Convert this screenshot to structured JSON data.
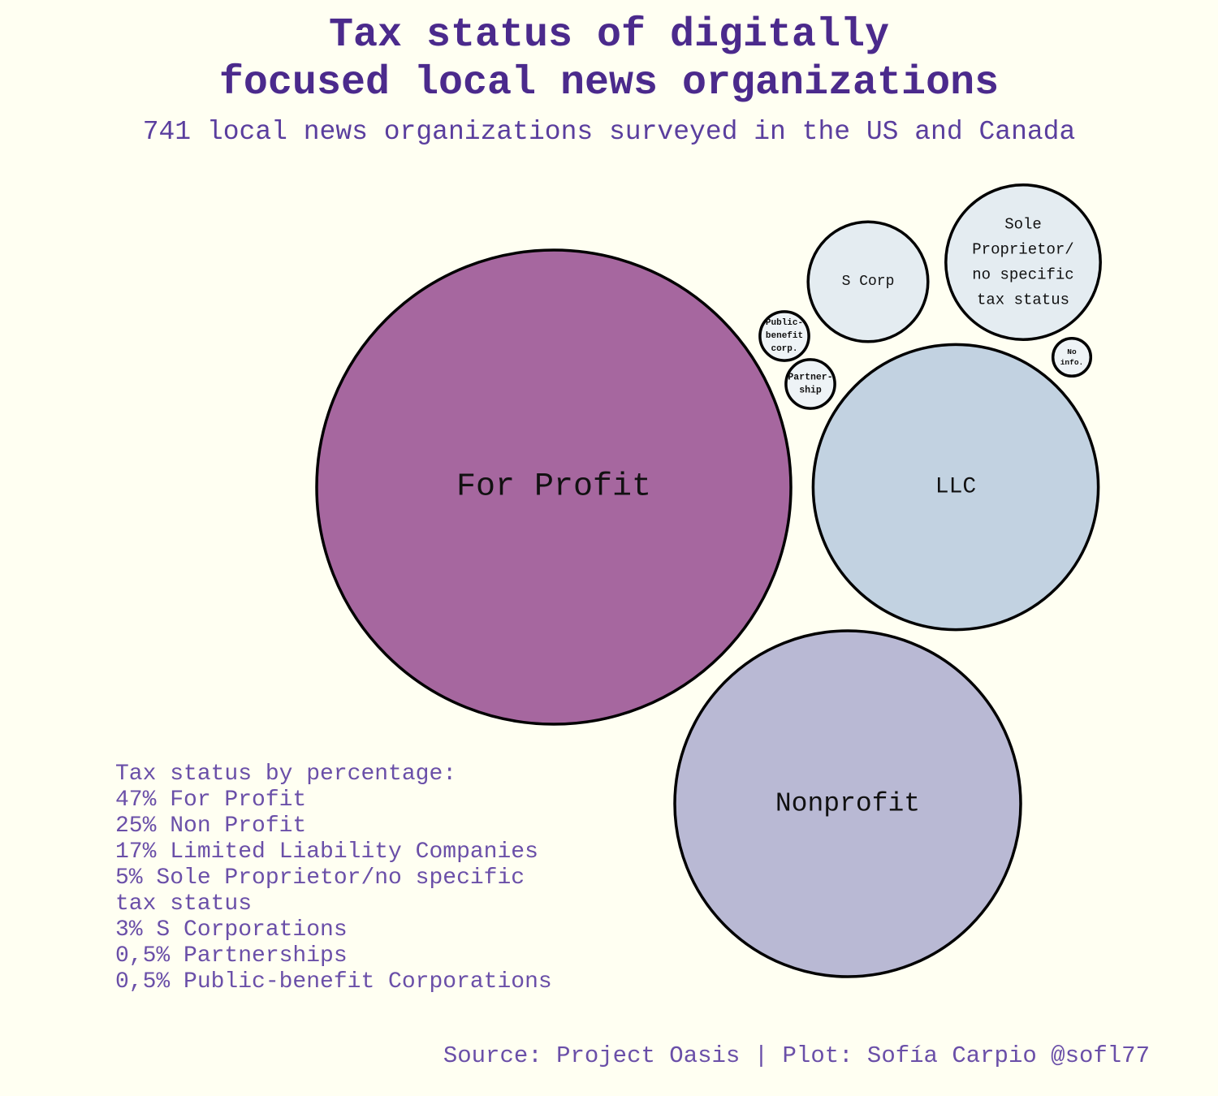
{
  "chart_data": {
    "type": "bubble",
    "title_lines": [
      "Tax status of digitally",
      "focused local news organizations"
    ],
    "subtitle": "741 local news organizations surveyed in the US and Canada",
    "bubbles": [
      {
        "label_lines": [
          "For Profit"
        ],
        "share": 47,
        "color": "#A6679F"
      },
      {
        "label_lines": [
          "Nonprofit"
        ],
        "share": 25,
        "color": "#B9B9D4"
      },
      {
        "label_lines": [
          "LLC"
        ],
        "share": 17,
        "color": "#C2D2E1"
      },
      {
        "label_lines": [
          "Sole",
          "Proprietor/",
          "no specific",
          "tax status"
        ],
        "share": 5,
        "color": "#E4ECF1"
      },
      {
        "label_lines": [
          "S Corp"
        ],
        "share": 3,
        "color": "#E4ECF1"
      },
      {
        "label_lines": [
          "Partner-",
          "ship"
        ],
        "share": 0.5,
        "color": "#EEF3F6"
      },
      {
        "label_lines": [
          "Public-",
          "benefit",
          "corp."
        ],
        "share": 0.5,
        "color": "#EEF3F6"
      },
      {
        "label_lines": [
          "No",
          "info."
        ],
        "share": 0.3,
        "color": "#EEF3F6"
      }
    ],
    "note_lines": [
      "Tax status by percentage:",
      "47% For Profit",
      "25% Non Profit",
      "17% Limited Liability Companies",
      "5% Sole Proprietor/no specific",
      "tax status",
      "3% S Corporations",
      "0,5% Partnerships",
      "0,5% Public-benefit Corporations"
    ],
    "caption": "Source: Project Oasis | Plot: Sofía Carpio @sofl77"
  }
}
